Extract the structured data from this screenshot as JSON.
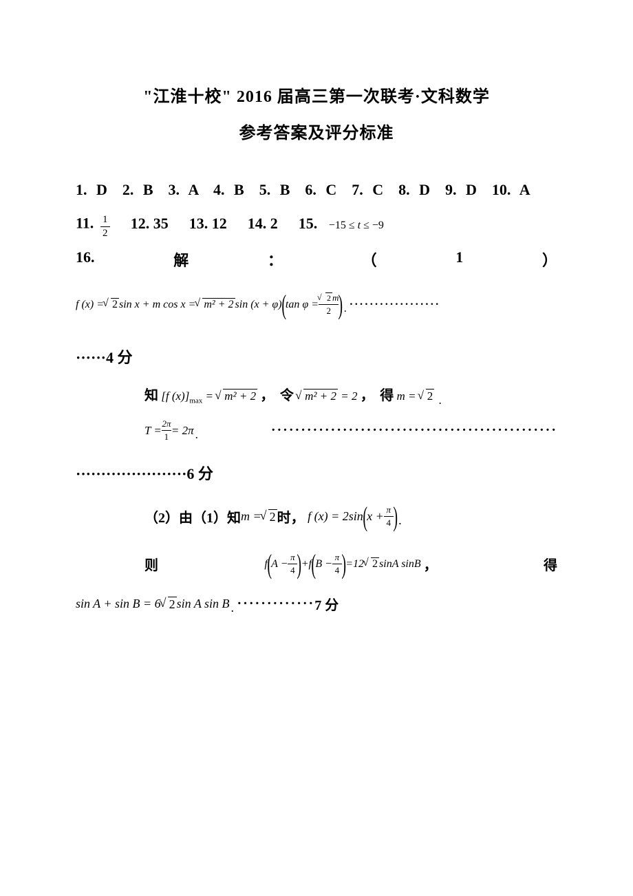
{
  "title_line1": "\"江淮十校\" 2016 届高三第一次联考·文科数学",
  "title_line2": "参考答案及评分标准",
  "answers_mc": "1. D　2. B　3. A　4. B　5. B　6. C　7. C　8. D　9. D　10. A",
  "q11": {
    "label": "11.",
    "num": "1",
    "den": "2"
  },
  "q12": {
    "label": "12.",
    "value": "35"
  },
  "q13": {
    "label": "13.",
    "value": "12"
  },
  "q14": {
    "label": "14.",
    "value": "2"
  },
  "q15": {
    "label": "15.",
    "expr_pre": "−15 ≤ ",
    "var": "t",
    "expr_post": " ≤ −9"
  },
  "q16": {
    "label": "16.",
    "jie": "解",
    "colon": "：",
    "lparen": "（",
    "one": "1",
    "rparen": "）"
  },
  "formula16": {
    "lhs": "f (x) = ",
    "sqrt2": "2",
    "part1": " sin x + m cos x = ",
    "sqrt_m22": "m² + 2",
    "part2": " sin (x + φ)",
    "tan": "tan φ = ",
    "frac_num_sqrt": "2",
    "frac_num_m": "m",
    "frac_den": "2"
  },
  "dots_long": "··················",
  "points4": "······4 分",
  "max_line": {
    "zhi": "知",
    "fx": "f (x)",
    "max": "max",
    "eq": " = ",
    "sqrt": "m² + 2",
    "comma": "，",
    "ling": "令",
    "eq2": " = 2",
    "comma2": "，",
    "de": "得",
    "m_eq": "m = ",
    "sqrt2": "2"
  },
  "T_line": {
    "T": "T = ",
    "num": "2π",
    "den": "1",
    "eq": " = 2π"
  },
  "dots_T": "················································",
  "points6": "······················6 分",
  "q16_2": {
    "prefix": "（2）由（1）知",
    "m_eq": "m = ",
    "sqrt2": "2",
    "shi": "时，",
    "fx": "f (x) = 2sin",
    "x": "x + ",
    "pi": "π",
    "four": "4"
  },
  "ze_line": {
    "ze": "则",
    "f": "f",
    "A": "A − ",
    "pi": "π",
    "four": "4",
    "plus": "+f",
    "B": "B − ",
    "eq": "=12",
    "sqrt2": "2",
    "sinAB": "sinA sinB",
    "comma": "，",
    "de": "得"
  },
  "final": {
    "expr": "sin A + sin B = 6",
    "sqrt2": "2",
    "rest": " sin A sin B",
    "dots": "·············",
    "pts": "7 分"
  },
  "colors": {
    "text": "#000000",
    "background": "#ffffff"
  }
}
